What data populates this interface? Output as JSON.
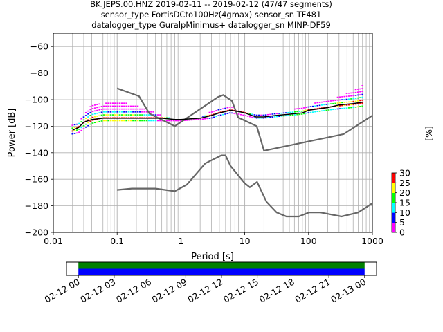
{
  "chart_data": [
    {
      "type": "heatmap",
      "title_lines": [
        "BK.JEPS.00.HNZ   2019-02-11 -- 2019-02-12  (47/47 segments)",
        "sensor_type FortisDCto100Hz(4gmax) sensor_sn TF481",
        "datalogger_type GuralpMinimus+ datalogger_sn MINP-DF59"
      ],
      "xlabel": "Period [s]",
      "ylabel": "Power [dB]",
      "x_scale": "log",
      "xlim": [
        0.01,
        1000
      ],
      "ylim": [
        -200,
        -50
      ],
      "x_ticks": [
        {
          "value": 0.01,
          "label": "0.01"
        },
        {
          "value": 0.1,
          "label": "0.1"
        },
        {
          "value": 1,
          "label": "1"
        },
        {
          "value": 10,
          "label": "10"
        },
        {
          "value": 100,
          "label": "100"
        },
        {
          "value": 1000,
          "label": "1000"
        }
      ],
      "y_ticks": [
        {
          "value": -60,
          "label": "−60"
        },
        {
          "value": -80,
          "label": "−80"
        },
        {
          "value": -100,
          "label": "−100"
        },
        {
          "value": -120,
          "label": "−120"
        },
        {
          "value": -140,
          "label": "−140"
        },
        {
          "value": -160,
          "label": "−160"
        },
        {
          "value": -180,
          "label": "−180"
        },
        {
          "value": -200,
          "label": "−200"
        }
      ],
      "grid": true,
      "colorbar": {
        "label": "[%]",
        "range": [
          0,
          30
        ],
        "ticks": [
          {
            "value": 0,
            "label": "0"
          },
          {
            "value": 5,
            "label": "5"
          },
          {
            "value": 10,
            "label": "10"
          },
          {
            "value": 15,
            "label": "15"
          },
          {
            "value": 20,
            "label": "20"
          },
          {
            "value": 25,
            "label": "25"
          },
          {
            "value": 30,
            "label": "30"
          }
        ],
        "colors": [
          "#ffffff",
          "#ff00ff",
          "#0000ff",
          "#00ffff",
          "#00ff00",
          "#ffff00",
          "#ff0000"
        ]
      },
      "noise_models": [
        {
          "name": "",
          "color": "#666666",
          "x": [
            0.1,
            0.17,
            0.4,
            0.8,
            1.24,
            2.4,
            4.3,
            5.0,
            6.0,
            10.0,
            12.0,
            15.6,
            21.9,
            31.6,
            45.0,
            70.0,
            101.0,
            154.0,
            328.0,
            600.0,
            1000.0
          ],
          "y": [
            -168,
            -167,
            -167,
            -169,
            -164,
            -148,
            -142,
            -142,
            -150,
            -163,
            -166,
            -162,
            -177,
            -185,
            -188,
            -188,
            -185,
            -185,
            -188,
            -185,
            -178
          ]
        },
        {
          "name": "",
          "color": "#666666",
          "x": [
            0.1,
            0.22,
            0.32,
            0.8,
            3.8,
            4.6,
            6.3,
            7.9,
            15.4,
            20.0,
            354.8,
            1000.0
          ],
          "y": [
            -91.5,
            -97.4,
            -110.5,
            -120.0,
            -98.0,
            -96.5,
            -101.0,
            -113.5,
            -120.0,
            -138.5,
            -126.0,
            -112.0
          ]
        }
      ],
      "series": [
        {
          "name": "",
          "color": "#000000",
          "x": [
            0.02,
            0.025,
            0.03,
            0.04,
            0.06,
            0.1,
            0.2,
            0.5,
            0.8,
            1.0,
            2.0,
            3.0,
            4.0,
            5.0,
            6.0,
            8.0,
            10.0,
            15.0,
            20.0,
            30.0,
            50.0,
            80.0,
            100.0,
            200.0,
            300.0,
            500.0,
            700.0
          ],
          "y": [
            -123,
            -121,
            -117,
            -115,
            -114,
            -114,
            -114,
            -114,
            -115,
            -115,
            -114,
            -112,
            -110,
            -109,
            -108,
            -109,
            -110,
            -113,
            -113,
            -112,
            -111,
            -110,
            -108,
            -106,
            -104,
            -103,
            -102
          ]
        }
      ],
      "psd_bands": [
        {
          "x": [
            0.02,
            0.025,
            0.03,
            0.04,
            0.06,
            0.1,
            0.2,
            0.5,
            0.8,
            1.0,
            2.0,
            3.0,
            4.0,
            5.0,
            6.0,
            8.0,
            10.0,
            15.0,
            20.0,
            30.0,
            50.0,
            80.0,
            100.0,
            200.0,
            300.0,
            500.0,
            700.0
          ],
          "top": [
            -118,
            -117,
            -112,
            -104,
            -103,
            -101,
            -104,
            -112,
            -115,
            -115,
            -113,
            -109,
            -106,
            -105,
            -105,
            -107,
            -109,
            -111,
            -111,
            -110,
            -108,
            -106,
            -104,
            -100,
            -98,
            -93,
            -89
          ],
          "bottom": [
            -126,
            -125,
            -122,
            -118,
            -116,
            -116,
            -116,
            -116,
            -116,
            -116,
            -115,
            -114,
            -112,
            -111,
            -110,
            -111,
            -112,
            -114,
            -114,
            -113,
            -112,
            -111,
            -110,
            -108,
            -107,
            -106,
            -105
          ]
        }
      ]
    },
    {
      "type": "bar",
      "time_ticks": [
        "02-12 00",
        "02-12 03",
        "02-12 06",
        "02-12 09",
        "02-12 12",
        "02-12 15",
        "02-12 18",
        "02-12 21",
        "02-13 00"
      ],
      "xlim_hours": [
        -1,
        25
      ],
      "coverage": [
        {
          "start_hour": 0,
          "end_hour": 24,
          "color": "#008000"
        },
        {
          "start_hour": 0,
          "end_hour": 24,
          "color": "#0000ff"
        }
      ]
    }
  ]
}
